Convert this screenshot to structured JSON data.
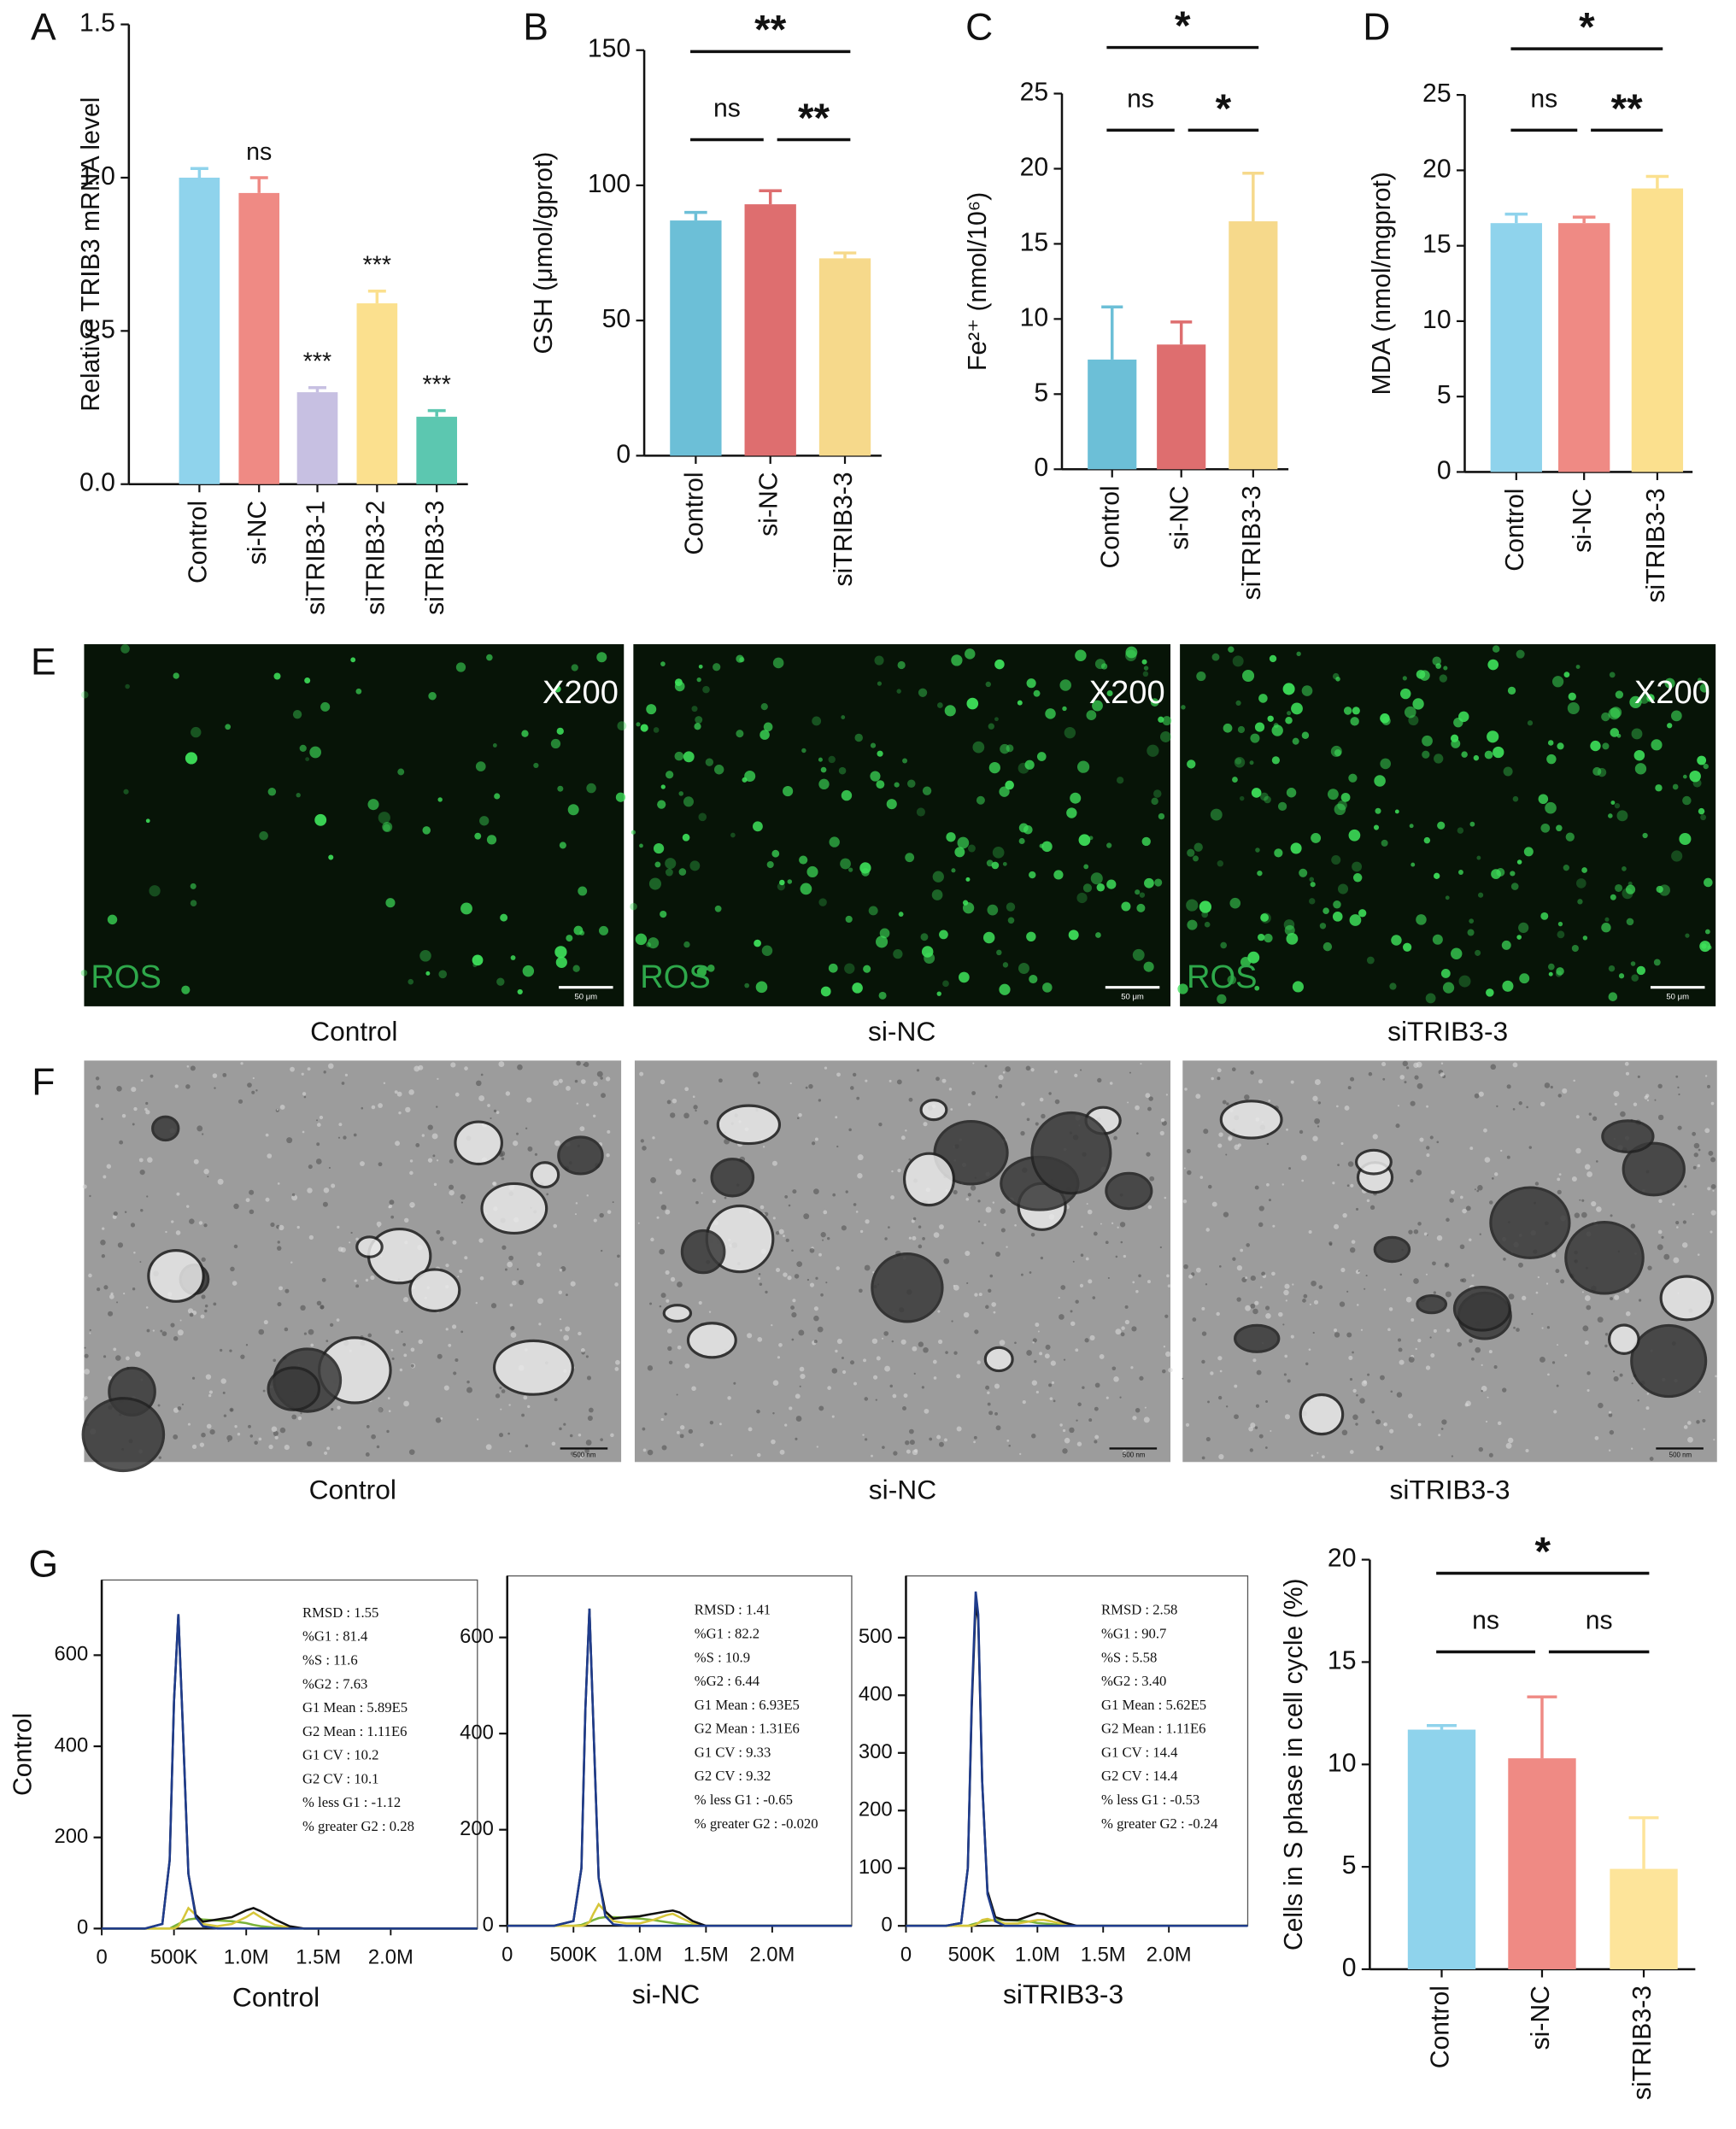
{
  "chart_data": [
    {
      "type": "bar",
      "panel": "A",
      "ylabel": "Relative TRIB3 mRNA level",
      "categories": [
        "Control",
        "si-NC",
        "siTRIB3-1",
        "siTRIB3-2",
        "siTRIB3-3"
      ],
      "values": [
        1.0,
        0.95,
        0.3,
        0.59,
        0.22
      ],
      "errors": [
        0.03,
        0.05,
        0.015,
        0.04,
        0.02
      ],
      "colors": [
        "#8fd3ec",
        "#ef8a84",
        "#c7c0e2",
        "#fbe08e",
        "#5cc7b0"
      ],
      "significance": [
        null,
        "ns",
        "***",
        "***",
        "***"
      ],
      "ylim": [
        0,
        1.5
      ],
      "yticks": [
        {
          "value": 0,
          "label": "0.0"
        },
        0.5,
        {
          "value": 1,
          "label": "1.0"
        },
        1.5
      ]
    },
    {
      "type": "bar",
      "panel": "B",
      "ylabel": "GSH (μmol/gprot)",
      "categories": [
        "Control",
        "si-NC",
        "siTRIB3-3"
      ],
      "values": [
        87,
        93,
        73
      ],
      "errors": [
        3,
        5,
        2
      ],
      "colors": [
        "#6cbfd7",
        "#de6e6f",
        "#f6d98b"
      ],
      "brackets": [
        {
          "from": "Control",
          "to": "siTRIB3-3",
          "label": "**"
        },
        {
          "from": "Control",
          "to": "si-NC",
          "label": "ns"
        },
        {
          "from": "si-NC",
          "to": "siTRIB3-3",
          "label": "**"
        }
      ],
      "ylim": [
        0,
        150
      ],
      "yticks": [
        0,
        50,
        100,
        150
      ]
    },
    {
      "type": "bar",
      "panel": "C",
      "ylabel": "Fe²⁺ (nmol/10⁶)",
      "categories": [
        "Control",
        "si-NC",
        "siTRIB3-3"
      ],
      "values": [
        7.3,
        8.3,
        16.5
      ],
      "errors": [
        3.5,
        1.5,
        3.2
      ],
      "colors": [
        "#6cbfd7",
        "#de6e6f",
        "#f6d98b"
      ],
      "brackets": [
        {
          "from": "Control",
          "to": "siTRIB3-3",
          "label": "*"
        },
        {
          "from": "Control",
          "to": "si-NC",
          "label": "ns"
        },
        {
          "from": "si-NC",
          "to": "siTRIB3-3",
          "label": "*"
        }
      ],
      "ylim": [
        0,
        25
      ],
      "yticks": [
        0,
        5,
        10,
        15,
        20,
        25
      ]
    },
    {
      "type": "bar",
      "panel": "D",
      "ylabel": "MDA (nmol/mgprot)",
      "categories": [
        "Control",
        "si-NC",
        "siTRIB3-3"
      ],
      "values": [
        16.5,
        16.5,
        18.8
      ],
      "errors": [
        0.6,
        0.4,
        0.8
      ],
      "colors": [
        "#8fd3ec",
        "#ef8a84",
        "#fbe08e"
      ],
      "brackets": [
        {
          "from": "Control",
          "to": "siTRIB3-3",
          "label": "*"
        },
        {
          "from": "Control",
          "to": "si-NC",
          "label": "ns"
        },
        {
          "from": "si-NC",
          "to": "siTRIB3-3",
          "label": "**"
        }
      ],
      "ylim": [
        0,
        25
      ],
      "yticks": [
        0,
        5,
        10,
        15,
        20,
        25
      ]
    },
    {
      "type": "line",
      "panel": "G",
      "ylabel": "Control",
      "xlabel": "Control",
      "x": [
        0,
        300000,
        420000,
        470000,
        500000,
        530000,
        560000,
        600000,
        650000,
        700000,
        800000,
        900000,
        1000000,
        1050000,
        1100000,
        1200000,
        1300000,
        1400000,
        2600000
      ],
      "series": [
        {
          "color": "#7ab33a",
          "values": [
            0,
            0,
            0,
            0,
            5,
            10,
            15,
            20,
            22,
            20,
            18,
            16,
            12,
            8,
            5,
            2,
            0,
            0,
            0
          ]
        },
        {
          "color": "#d6c63a",
          "values": [
            0,
            0,
            0,
            0,
            0,
            5,
            20,
            45,
            30,
            10,
            5,
            10,
            25,
            35,
            25,
            8,
            2,
            0,
            0
          ]
        },
        {
          "color": "#111111",
          "values": [
            0,
            0,
            10,
            150,
            500,
            690,
            450,
            120,
            30,
            15,
            20,
            25,
            40,
            45,
            38,
            20,
            5,
            0,
            0
          ]
        },
        {
          "color": "#1f3c8c",
          "values": [
            0,
            0,
            10,
            150,
            500,
            690,
            450,
            120,
            25,
            5,
            0,
            0,
            0,
            0,
            0,
            0,
            0,
            0,
            0
          ]
        }
      ],
      "annotations": [
        "RMSD : 1.55",
        "%G1 : 81.4",
        "%S : 11.6",
        "%G2 : 7.63",
        "G1 Mean : 5.89E5",
        "G2 Mean : 1.11E6",
        "G1 CV : 10.2",
        "G2 CV : 10.1",
        "% less G1 : -1.12",
        "% greater G2 : 0.28"
      ],
      "xlim": [
        0,
        2600000
      ],
      "xticks": [
        0,
        {
          "value": 500000,
          "label": "500K"
        },
        {
          "value": 1000000,
          "label": "1.0M"
        },
        {
          "value": 1500000,
          "label": "1.5M"
        },
        {
          "value": 2000000,
          "label": "2.0M"
        }
      ],
      "ylim": [
        0,
        765
      ],
      "yticks": [
        0,
        200,
        400,
        600
      ]
    },
    {
      "type": "line",
      "xlabel": "si-NC",
      "x": [
        0,
        350000,
        500000,
        560000,
        590000,
        620000,
        650000,
        690000,
        740000,
        800000,
        900000,
        1000000,
        1100000,
        1200000,
        1250000,
        1300000,
        1400000,
        1500000,
        2600000
      ],
      "series": [
        {
          "color": "#7ab33a",
          "values": [
            0,
            0,
            0,
            2,
            5,
            8,
            12,
            16,
            18,
            18,
            17,
            15,
            12,
            8,
            6,
            4,
            1,
            0,
            0
          ]
        },
        {
          "color": "#d6c63a",
          "values": [
            0,
            0,
            0,
            0,
            2,
            8,
            25,
            45,
            30,
            10,
            5,
            5,
            12,
            22,
            25,
            18,
            5,
            0,
            0
          ]
        },
        {
          "color": "#111111",
          "values": [
            0,
            0,
            10,
            120,
            450,
            660,
            420,
            100,
            30,
            15,
            18,
            20,
            25,
            30,
            32,
            28,
            10,
            0,
            0
          ]
        },
        {
          "color": "#1f3c8c",
          "values": [
            0,
            0,
            10,
            120,
            450,
            660,
            420,
            100,
            20,
            3,
            0,
            0,
            0,
            0,
            0,
            0,
            0,
            0,
            0
          ]
        }
      ],
      "annotations": [
        "RMSD : 1.41",
        "%G1 : 82.2",
        "%S : 10.9",
        "%G2 : 6.44",
        "G1 Mean : 6.93E5",
        "G2 Mean : 1.31E6",
        "G1 CV : 9.33",
        "G2 CV : 9.32",
        "% less G1 : -0.65",
        "% greater G2 : -0.020"
      ],
      "xlim": [
        0,
        2600000
      ],
      "xticks": [
        0,
        {
          "value": 500000,
          "label": "500K"
        },
        {
          "value": 1000000,
          "label": "1.0M"
        },
        {
          "value": 1500000,
          "label": "1.5M"
        },
        {
          "value": 2000000,
          "label": "2.0M"
        }
      ],
      "ylim": [
        0,
        728
      ],
      "yticks": [
        0,
        200,
        400,
        600
      ]
    },
    {
      "type": "line",
      "xlabel": "siTRIB3-3",
      "x": [
        0,
        300000,
        420000,
        470000,
        500000,
        530000,
        550000,
        580000,
        620000,
        680000,
        750000,
        850000,
        950000,
        1000000,
        1050000,
        1100000,
        1200000,
        1300000,
        2600000
      ],
      "series": [
        {
          "color": "#7ab33a",
          "values": [
            0,
            0,
            0,
            0,
            2,
            4,
            5,
            7,
            9,
            10,
            10,
            9,
            7,
            5,
            4,
            3,
            1,
            0,
            0
          ]
        },
        {
          "color": "#d6c63a",
          "values": [
            0,
            0,
            0,
            0,
            0,
            2,
            5,
            10,
            12,
            8,
            4,
            4,
            8,
            10,
            10,
            8,
            3,
            0,
            0
          ]
        },
        {
          "color": "#111111",
          "values": [
            0,
            0,
            5,
            100,
            380,
            560,
            530,
            250,
            60,
            15,
            10,
            10,
            18,
            22,
            20,
            15,
            6,
            0,
            0
          ]
        },
        {
          "color": "#1f3c8c",
          "values": [
            0,
            0,
            5,
            100,
            390,
            580,
            540,
            250,
            55,
            8,
            0,
            0,
            0,
            0,
            0,
            0,
            0,
            0,
            0
          ]
        }
      ],
      "annotations": [
        "RMSD : 2.58",
        "%G1 : 90.7",
        "%S : 5.58",
        "%G2 : 3.40",
        "G1 Mean : 5.62E5",
        "G2 Mean : 1.11E6",
        "G1 CV : 14.4",
        "G2 CV : 14.4",
        "% less G1 : -0.53",
        "% greater G2 : -0.24"
      ],
      "xlim": [
        0,
        2600000
      ],
      "xticks": [
        0,
        {
          "value": 500000,
          "label": "500K"
        },
        {
          "value": 1000000,
          "label": "1.0M"
        },
        {
          "value": 1500000,
          "label": "1.5M"
        },
        {
          "value": 2000000,
          "label": "2.0M"
        }
      ],
      "ylim": [
        0,
        607
      ],
      "yticks": [
        0,
        100,
        200,
        300,
        400,
        500
      ]
    },
    {
      "type": "bar",
      "ylabel": "Cells in S phase in cell cycle (%)",
      "categories": [
        "Control",
        "si-NC",
        "siTRIB3-3"
      ],
      "values": [
        11.7,
        10.3,
        4.9
      ],
      "errors": [
        0.2,
        3.0,
        2.5
      ],
      "colors": [
        "#8fd3ec",
        "#ef8a84",
        "#fde49a"
      ],
      "brackets": [
        {
          "from": "Control",
          "to": "siTRIB3-3",
          "label": "*"
        },
        {
          "from": "Control",
          "to": "si-NC",
          "label": "ns"
        },
        {
          "from": "si-NC",
          "to": "siTRIB3-3",
          "label": "ns"
        }
      ],
      "ylim": [
        0,
        20
      ],
      "yticks": [
        0,
        5,
        10,
        15,
        20
      ]
    }
  ],
  "images": [
    {
      "panel": "E",
      "magnification": [
        "X200",
        "X200",
        "X200"
      ],
      "stain": [
        "ROS",
        "ROS",
        "ROS"
      ],
      "scale_bar": [
        "50 μm",
        "50 μm",
        "50 μm"
      ],
      "captions": [
        "Control",
        "si-NC",
        "siTRIB3-3"
      ]
    },
    {
      "panel": "F",
      "scale_bar": [
        "500 nm",
        "500 nm",
        "500 nm"
      ],
      "captions": [
        "Control",
        "si-NC",
        "siTRIB3-3"
      ]
    }
  ]
}
